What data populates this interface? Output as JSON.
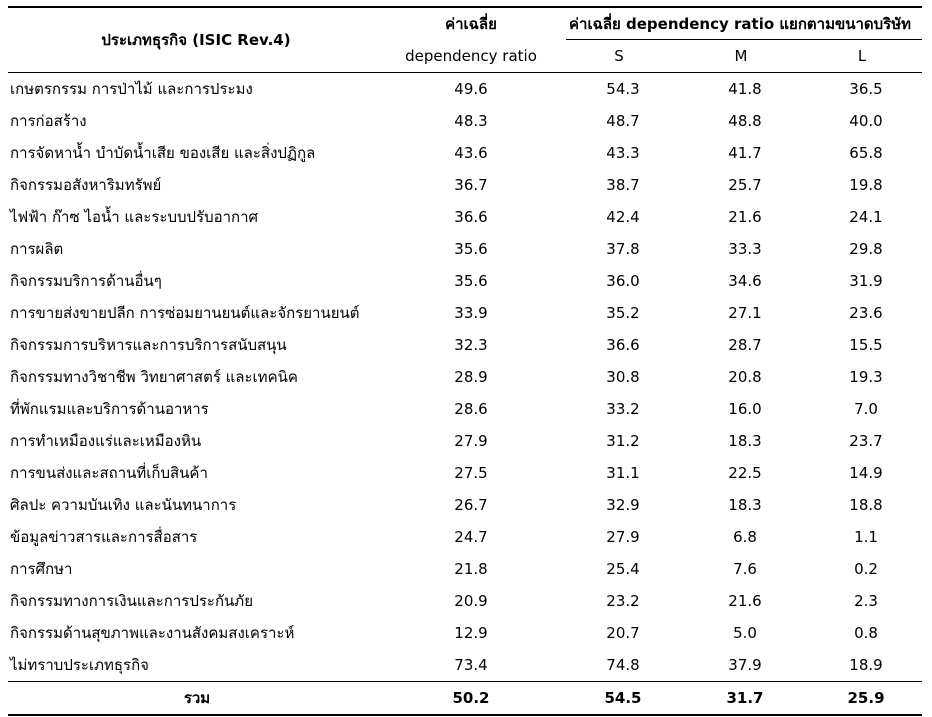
{
  "header": {
    "category_label": "ประเภทธุรกิจ (ISIC Rev.4)",
    "average_label_line1": "ค่าเฉลี่ย",
    "average_label_line2": "dependency ratio",
    "by_size_label": "ค่าเฉลี่ย dependency ratio แยกตามขนาดบริษัท",
    "size_s": "S",
    "size_m": "M",
    "size_l": "L"
  },
  "rows": [
    {
      "name": "เกษตรกรรม การป่าไม้ และการประมง",
      "avg": "49.6",
      "s": "54.3",
      "m": "41.8",
      "l": "36.5"
    },
    {
      "name": "การก่อสร้าง",
      "avg": "48.3",
      "s": "48.7",
      "m": "48.8",
      "l": "40.0"
    },
    {
      "name": "การจัดหาน้ำ บำบัดน้ำเสีย ของเสีย และสิ่งปฏิกูล",
      "avg": "43.6",
      "s": "43.3",
      "m": "41.7",
      "l": "65.8"
    },
    {
      "name": "กิจกรรมอสังหาริมทรัพย์",
      "avg": "36.7",
      "s": "38.7",
      "m": "25.7",
      "l": "19.8"
    },
    {
      "name": "ไฟฟ้า ก๊าซ ไอน้ำ และระบบปรับอากาศ",
      "avg": "36.6",
      "s": "42.4",
      "m": "21.6",
      "l": "24.1"
    },
    {
      "name": "การผลิต",
      "avg": "35.6",
      "s": "37.8",
      "m": "33.3",
      "l": "29.8"
    },
    {
      "name": "กิจกรรมบริการด้านอื่นๆ",
      "avg": "35.6",
      "s": "36.0",
      "m": "34.6",
      "l": "31.9"
    },
    {
      "name": "การขายส่งขายปลีก การซ่อมยานยนต์และจักรยานยนต์",
      "avg": "33.9",
      "s": "35.2",
      "m": "27.1",
      "l": "23.6"
    },
    {
      "name": "กิจกรรมการบริหารและการบริการสนับสนุน",
      "avg": "32.3",
      "s": "36.6",
      "m": "28.7",
      "l": "15.5"
    },
    {
      "name": "กิจกรรมทางวิชาชีพ วิทยาศาสตร์ และเทคนิค",
      "avg": "28.9",
      "s": "30.8",
      "m": "20.8",
      "l": "19.3"
    },
    {
      "name": "ที่พักแรมและบริการด้านอาหาร",
      "avg": "28.6",
      "s": "33.2",
      "m": "16.0",
      "l": "7.0"
    },
    {
      "name": "การทำเหมืองแร่และเหมืองหิน",
      "avg": "27.9",
      "s": "31.2",
      "m": "18.3",
      "l": "23.7"
    },
    {
      "name": "การขนส่งและสถานที่เก็บสินค้า",
      "avg": "27.5",
      "s": "31.1",
      "m": "22.5",
      "l": "14.9"
    },
    {
      "name": "ศิลปะ ความบันเทิง และนันทนาการ",
      "avg": "26.7",
      "s": "32.9",
      "m": "18.3",
      "l": "18.8"
    },
    {
      "name": "ข้อมูลข่าวสารและการสื่อสาร",
      "avg": "24.7",
      "s": "27.9",
      "m": "6.8",
      "l": "1.1"
    },
    {
      "name": "การศึกษา",
      "avg": "21.8",
      "s": "25.4",
      "m": "7.6",
      "l": "0.2"
    },
    {
      "name": "กิจกรรมทางการเงินและการประกันภัย",
      "avg": "20.9",
      "s": "23.2",
      "m": "21.6",
      "l": "2.3"
    },
    {
      "name": "กิจกรรมด้านสุขภาพและงานสังคมสงเคราะห์",
      "avg": "12.9",
      "s": "20.7",
      "m": "5.0",
      "l": "0.8"
    },
    {
      "name": "ไม่ทราบประเภทธุรกิจ",
      "avg": "73.4",
      "s": "74.8",
      "m": "37.9",
      "l": "18.9"
    }
  ],
  "total": {
    "name": "รวม",
    "avg": "50.2",
    "s": "54.5",
    "m": "31.7",
    "l": "25.9"
  }
}
